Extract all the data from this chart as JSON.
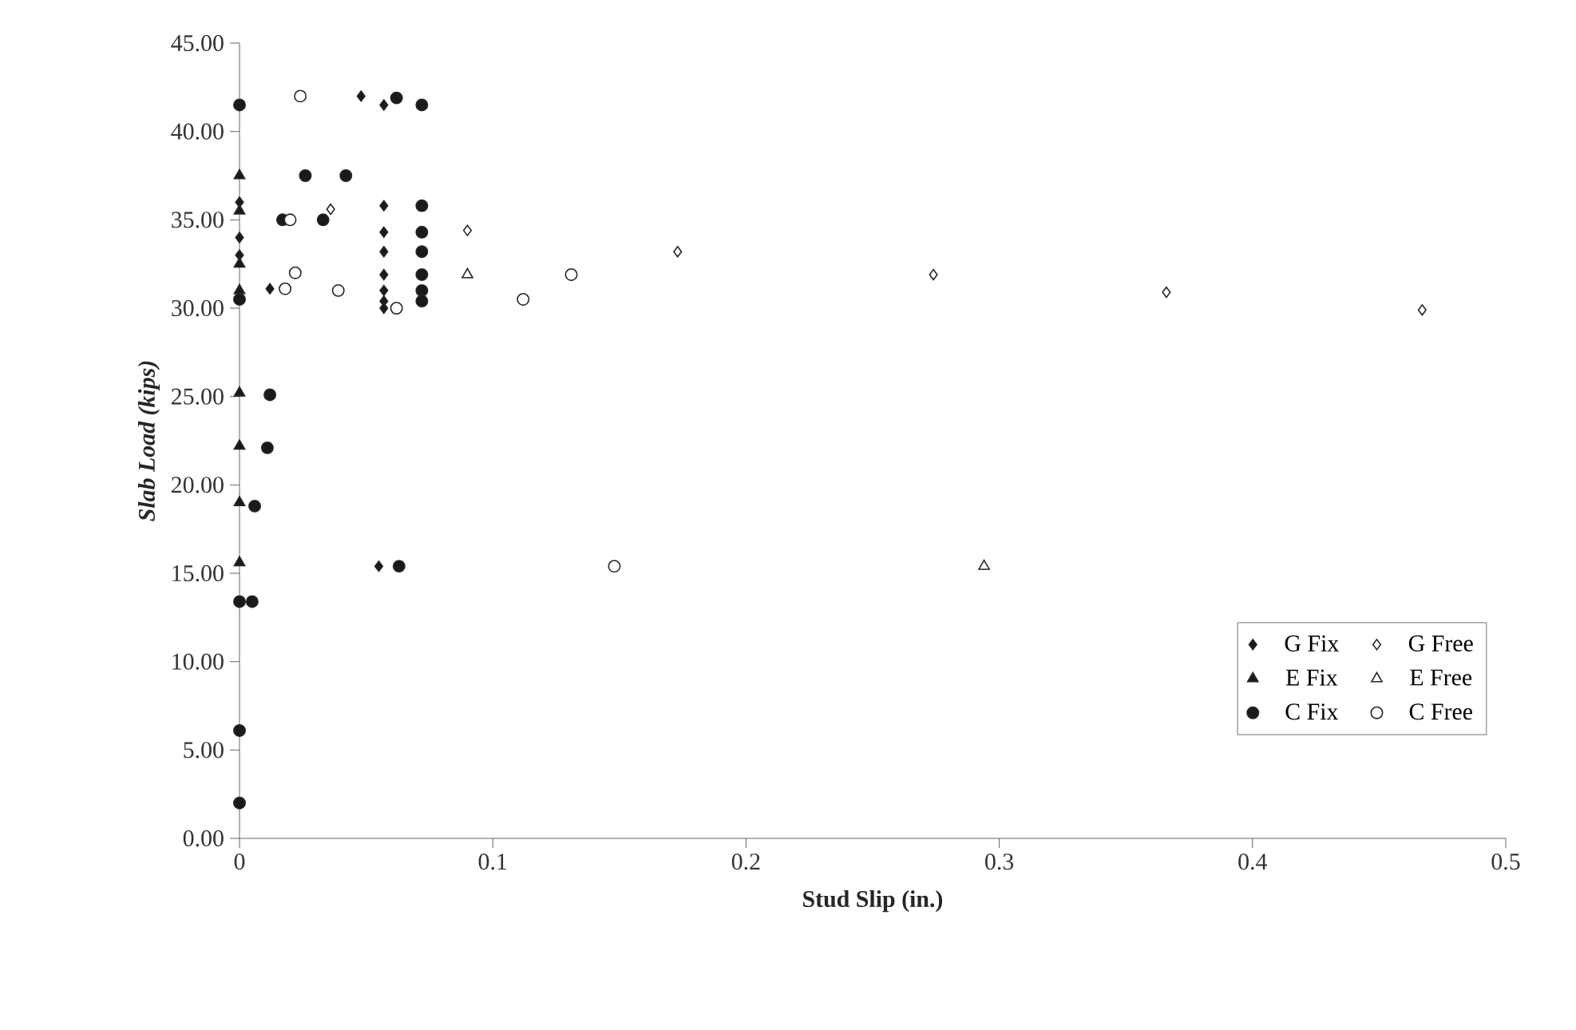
{
  "chart_data": {
    "type": "scatter",
    "xlabel": "Stud Slip (in.)",
    "ylabel": "Slab Load (kips)",
    "xlim": [
      0,
      0.5
    ],
    "ylim": [
      0,
      45
    ],
    "xticks": [
      0,
      0.1,
      0.2,
      0.3,
      0.4,
      0.5
    ],
    "yticks": [
      {
        "value": 0,
        "label": "0.00"
      },
      {
        "value": 5,
        "label": "5.00"
      },
      {
        "value": 10,
        "label": "10.00"
      },
      {
        "value": 15,
        "label": "15.00"
      },
      {
        "value": 20,
        "label": "20.00"
      },
      {
        "value": 25,
        "label": "25.00"
      },
      {
        "value": 30,
        "label": "30.00"
      },
      {
        "value": 35,
        "label": "35.00"
      },
      {
        "value": 40,
        "label": "40.00"
      },
      {
        "value": 45,
        "label": "45.00"
      }
    ],
    "grid": false,
    "legend": "right",
    "series": [
      {
        "name": "G Fix",
        "color": "#1a1a1a",
        "marker": "diamond",
        "x": [
          0,
          0,
          0,
          0.012,
          0.048,
          0.057,
          0.057,
          0.057,
          0.057,
          0.057,
          0.057,
          0.057,
          0.057,
          0.055
        ],
        "values": [
          36.0,
          34.0,
          33.0,
          31.1,
          42.0,
          41.5,
          35.8,
          34.3,
          33.2,
          31.9,
          31.0,
          30.4,
          30.0,
          15.4
        ]
      },
      {
        "name": "G Free",
        "color": "#ffffff",
        "marker": "diamond",
        "x": [
          0.036,
          0.09,
          0.173,
          0.274,
          0.366,
          0.467
        ],
        "values": [
          35.6,
          34.4,
          33.2,
          31.9,
          30.9,
          29.9
        ]
      },
      {
        "name": "E Fix",
        "color": "#1a1a1a",
        "marker": "triangle",
        "x": [
          0,
          0,
          0,
          0,
          0,
          0,
          0,
          0
        ],
        "values": [
          37.5,
          35.5,
          32.5,
          31.0,
          25.2,
          22.2,
          19.0,
          15.6
        ]
      },
      {
        "name": "E Free",
        "color": "#ffffff",
        "marker": "triangle",
        "x": [
          0.09,
          0.294
        ],
        "values": [
          31.9,
          15.4
        ]
      },
      {
        "name": "C Fix",
        "color": "#1a1a1a",
        "marker": "circle",
        "x": [
          0,
          0,
          0,
          0,
          0,
          0.005,
          0.006,
          0.011,
          0.012,
          0.017,
          0.026,
          0.033,
          0.042,
          0.062,
          0.063,
          0.072,
          0.072,
          0.072,
          0.072,
          0.072,
          0.072,
          0.072
        ],
        "values": [
          41.5,
          30.5,
          13.4,
          6.1,
          2.0,
          13.4,
          18.8,
          22.1,
          25.1,
          35.0,
          37.5,
          35.0,
          37.5,
          41.9,
          15.4,
          41.5,
          35.8,
          34.3,
          33.2,
          31.9,
          31.0,
          30.4
        ]
      },
      {
        "name": "C Free",
        "color": "#ffffff",
        "marker": "circle",
        "x": [
          0.024,
          0.018,
          0.022,
          0.02,
          0.039,
          0.062,
          0.112,
          0.131,
          0.148
        ],
        "values": [
          42.0,
          31.1,
          32.0,
          35.0,
          31.0,
          30.0,
          30.5,
          31.9,
          15.4
        ]
      }
    ]
  }
}
